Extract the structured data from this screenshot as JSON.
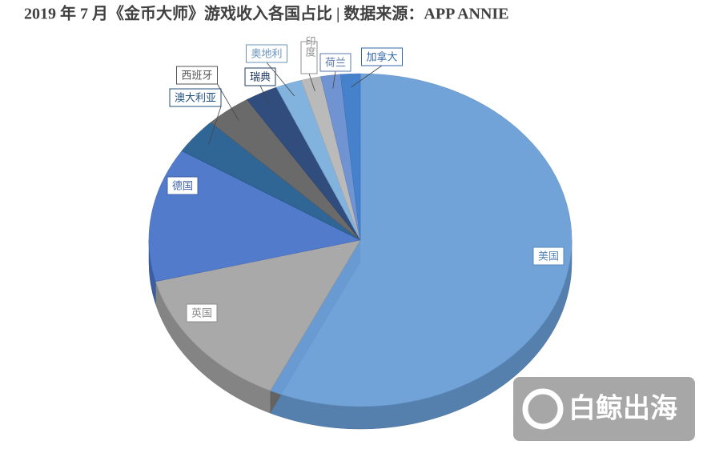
{
  "chart_data": {
    "type": "pie3d",
    "title": "2019 年 7 月《金币大师》游戏收入各国占比 | 数据来源：APP ANNIE",
    "categories": [
      "美国",
      "英国",
      "德国",
      "澳大利亚",
      "西班牙",
      "瑞典",
      "奥地利",
      "印度",
      "荷兰",
      "加拿大"
    ],
    "values": [
      57,
      14,
      13,
      3.5,
      3.5,
      2.5,
      2,
      1.5,
      1.5,
      1.5
    ],
    "colors": [
      "#6a9fd8",
      "#a5a5a5",
      "#4a74c9",
      "#255e91",
      "#636363",
      "#264478",
      "#7cafdd",
      "#b7b7b7",
      "#698ed0",
      "#3d7cc9"
    ],
    "watermark": "白鲸出海"
  }
}
